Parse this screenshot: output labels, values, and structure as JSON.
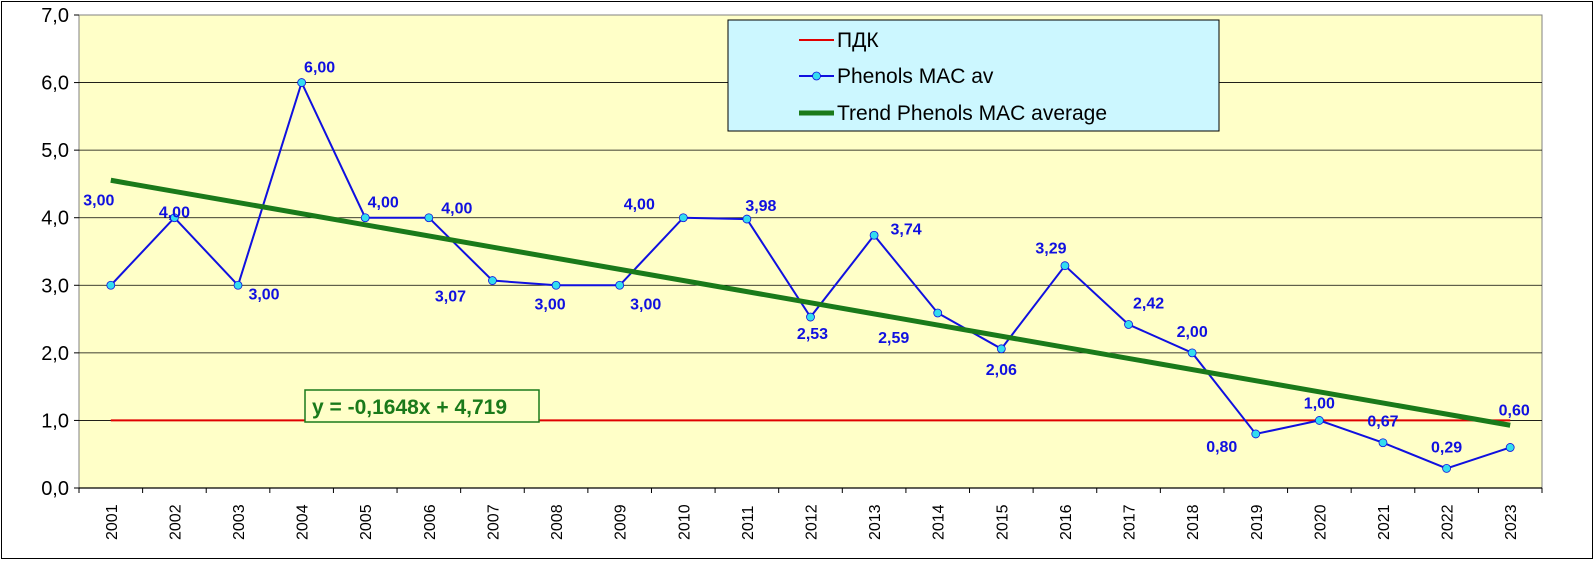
{
  "chart_data": {
    "type": "line",
    "x": [
      "2001",
      "2002",
      "2003",
      "2004",
      "2005",
      "2006",
      "2007",
      "2008",
      "2009",
      "2010",
      "2011",
      "2012",
      "2013",
      "2014",
      "2015",
      "2016",
      "2017",
      "2018",
      "2019",
      "2020",
      "2021",
      "2022",
      "2023"
    ],
    "ylim": [
      0,
      7
    ],
    "yticks": [
      "0,0",
      "1,0",
      "2,0",
      "3,0",
      "4,0",
      "5,0",
      "6,0",
      "7,0"
    ],
    "grid": true,
    "legend_position": "top-center",
    "plot_background": "#ffffc8",
    "series": [
      {
        "name": "ПДК",
        "color": "#e00000",
        "values": [
          1,
          1,
          1,
          1,
          1,
          1,
          1,
          1,
          1,
          1,
          1,
          1,
          1,
          1,
          1,
          1,
          1,
          1,
          1,
          1,
          1,
          1,
          1
        ]
      },
      {
        "name": "Phenols MAC av",
        "color": "#1010e0",
        "marker_color": "#33ddee",
        "values": [
          3.0,
          4.0,
          3.0,
          6.0,
          4.0,
          4.0,
          3.07,
          3.0,
          3.0,
          4.0,
          3.98,
          2.53,
          3.74,
          2.59,
          2.06,
          3.29,
          2.42,
          2.0,
          0.8,
          1.0,
          0.67,
          0.29,
          0.6
        ],
        "labels": [
          "3,00",
          "4,00",
          "3,00",
          "6,00",
          "4,00",
          "4,00",
          "3,07",
          "3,00",
          "3,00",
          "4,00",
          "3,98",
          "2,53",
          "3,74",
          "2,59",
          "2,06",
          "3,29",
          "2,42",
          "2,00",
          "0,80",
          "1,00",
          "0,67",
          "0,29",
          "0,60"
        ]
      },
      {
        "name": "Trend Phenols MAC average",
        "color": "#1a7a1a",
        "trend": {
          "slope": -0.1648,
          "intercept": 4.719
        }
      }
    ],
    "annotations": [
      {
        "text": "y = -0,1648x + 4,719"
      }
    ]
  }
}
